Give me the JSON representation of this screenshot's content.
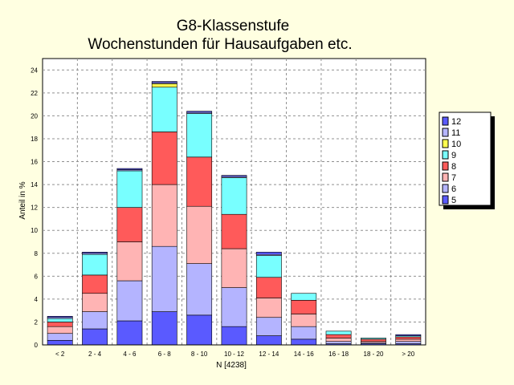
{
  "chart_data": {
    "type": "bar",
    "stacked": true,
    "title": "G8-Klassenstufe",
    "subtitle": "Wochenstunden für Hausaufgaben etc.",
    "xlabel": "N [4238]",
    "ylabel": "Anteil in %",
    "ylim": [
      0,
      25
    ],
    "yticks": [
      0,
      2,
      4,
      6,
      8,
      10,
      12,
      14,
      16,
      18,
      20,
      22,
      24
    ],
    "grid": true,
    "legend_position": "right",
    "categories": [
      "< 2",
      "2 - 4",
      "4 - 6",
      "6 - 8",
      "8 - 10",
      "10 - 12",
      "12 - 14",
      "14 - 16",
      "16 - 18",
      "18 - 20",
      "> 20"
    ],
    "series": [
      {
        "name": "5",
        "color": "#5a5aff",
        "values": [
          0.4,
          1.4,
          2.1,
          2.9,
          2.6,
          1.6,
          0.8,
          0.5,
          0.1,
          0.1,
          0.1
        ]
      },
      {
        "name": "6",
        "color": "#b4b4ff",
        "values": [
          0.6,
          1.5,
          3.5,
          5.7,
          4.5,
          3.4,
          1.6,
          1.1,
          0.2,
          0.1,
          0.2
        ]
      },
      {
        "name": "7",
        "color": "#ffb4b4",
        "values": [
          0.6,
          1.6,
          3.4,
          5.4,
          5.0,
          3.4,
          1.7,
          1.1,
          0.3,
          0.1,
          0.2
        ]
      },
      {
        "name": "8",
        "color": "#ff5a5a",
        "values": [
          0.4,
          1.6,
          3.0,
          4.6,
          4.3,
          3.0,
          1.8,
          1.2,
          0.3,
          0.2,
          0.2
        ]
      },
      {
        "name": "9",
        "color": "#78ffff",
        "values": [
          0.3,
          1.8,
          3.2,
          3.9,
          3.8,
          3.2,
          1.9,
          0.6,
          0.3,
          0.1,
          0.1
        ]
      },
      {
        "name": "10",
        "color": "#ffff50",
        "values": [
          0.0,
          0.0,
          0.0,
          0.3,
          0.0,
          0.0,
          0.0,
          0.0,
          0.0,
          0.0,
          0.0
        ]
      },
      {
        "name": "11",
        "color": "#b4b4ff",
        "values": [
          0.1,
          0.1,
          0.1,
          0.1,
          0.1,
          0.1,
          0.1,
          0.0,
          0.0,
          0.0,
          0.0
        ]
      },
      {
        "name": "12",
        "color": "#5a5aff",
        "values": [
          0.1,
          0.1,
          0.1,
          0.1,
          0.1,
          0.1,
          0.2,
          0.0,
          0.0,
          0.0,
          0.1
        ]
      }
    ]
  }
}
